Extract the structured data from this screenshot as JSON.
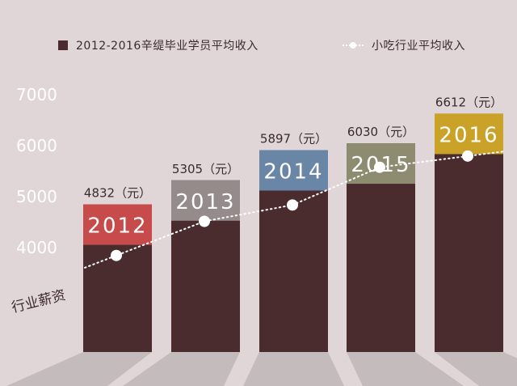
{
  "legend": {
    "bar_label": "2012-2016辛缇毕业学员平均收入",
    "line_label": "小吃行业平均收入"
  },
  "line_annotation": "行业薪资",
  "colors": {
    "background": "#e0d6d8",
    "bar_body": "#4a2c2f",
    "axis_text": "#ffffff",
    "value_text": "#3b2a2c",
    "industry_line": "#ffffff",
    "floor_shadow": "#bcb4b5"
  },
  "chart_data": {
    "type": "bar",
    "categories": [
      "2012",
      "2013",
      "2014",
      "2015",
      "2016"
    ],
    "values": [
      4832,
      5305,
      5897,
      6030,
      6612
    ],
    "value_labels": [
      "4832（元）",
      "5305（元）",
      "5897（元）",
      "6030（元）",
      "6612（元）"
    ],
    "year_block_colors": [
      "#c84b4b",
      "#948b8a",
      "#6a86a6",
      "#8e8c70",
      "#c9a227"
    ],
    "y_ticks": [
      4000,
      5000,
      6000,
      7000
    ],
    "ylim": [
      3000,
      7000
    ],
    "grid": false,
    "line_series": {
      "name": "小吃行业平均收入",
      "values": [
        3830,
        4500,
        4820,
        5560,
        5780
      ]
    }
  }
}
